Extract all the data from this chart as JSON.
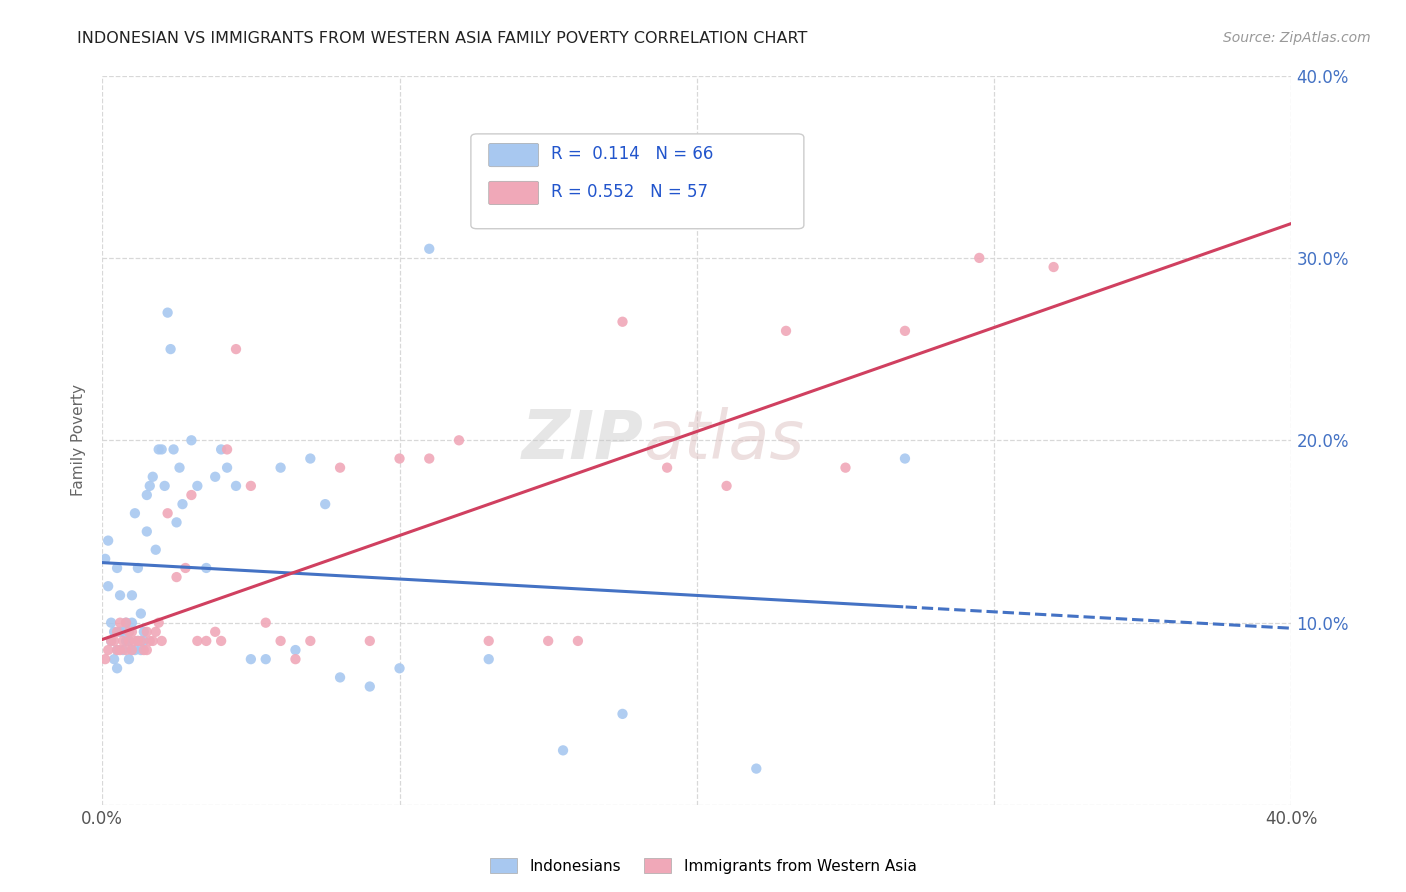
{
  "title": "INDONESIAN VS IMMIGRANTS FROM WESTERN ASIA FAMILY POVERTY CORRELATION CHART",
  "source": "Source: ZipAtlas.com",
  "ylabel": "Family Poverty",
  "xlim": [
    0.0,
    0.4
  ],
  "ylim": [
    0.0,
    0.4
  ],
  "blue_R": "0.114",
  "blue_N": "66",
  "pink_R": "0.552",
  "pink_N": "57",
  "blue_color": "#a8c8f0",
  "pink_color": "#f0a8b8",
  "blue_line_color": "#4472c4",
  "pink_line_color": "#d04060",
  "watermark_ZIP": "ZIP",
  "watermark_atlas": "atlas",
  "legend_label_blue": "Indonesians",
  "legend_label_pink": "Immigrants from Western Asia",
  "blue_x": [
    0.001,
    0.002,
    0.002,
    0.003,
    0.003,
    0.004,
    0.004,
    0.005,
    0.005,
    0.005,
    0.006,
    0.006,
    0.007,
    0.007,
    0.008,
    0.008,
    0.009,
    0.009,
    0.009,
    0.01,
    0.01,
    0.01,
    0.011,
    0.011,
    0.012,
    0.012,
    0.013,
    0.013,
    0.014,
    0.014,
    0.015,
    0.015,
    0.016,
    0.017,
    0.018,
    0.019,
    0.02,
    0.021,
    0.022,
    0.023,
    0.024,
    0.025,
    0.026,
    0.027,
    0.03,
    0.032,
    0.035,
    0.038,
    0.04,
    0.042,
    0.045,
    0.05,
    0.055,
    0.06,
    0.065,
    0.07,
    0.075,
    0.08,
    0.09,
    0.1,
    0.11,
    0.13,
    0.155,
    0.175,
    0.22,
    0.27
  ],
  "blue_y": [
    0.135,
    0.12,
    0.145,
    0.09,
    0.1,
    0.08,
    0.095,
    0.075,
    0.085,
    0.13,
    0.095,
    0.115,
    0.085,
    0.095,
    0.09,
    0.1,
    0.08,
    0.09,
    0.095,
    0.085,
    0.1,
    0.115,
    0.085,
    0.16,
    0.09,
    0.13,
    0.085,
    0.105,
    0.09,
    0.095,
    0.15,
    0.17,
    0.175,
    0.18,
    0.14,
    0.195,
    0.195,
    0.175,
    0.27,
    0.25,
    0.195,
    0.155,
    0.185,
    0.165,
    0.2,
    0.175,
    0.13,
    0.18,
    0.195,
    0.185,
    0.175,
    0.08,
    0.08,
    0.185,
    0.085,
    0.19,
    0.165,
    0.07,
    0.065,
    0.075,
    0.305,
    0.08,
    0.03,
    0.05,
    0.02,
    0.19
  ],
  "pink_x": [
    0.001,
    0.002,
    0.003,
    0.004,
    0.005,
    0.005,
    0.006,
    0.006,
    0.007,
    0.008,
    0.008,
    0.009,
    0.009,
    0.01,
    0.01,
    0.011,
    0.012,
    0.013,
    0.014,
    0.015,
    0.015,
    0.016,
    0.017,
    0.018,
    0.019,
    0.02,
    0.022,
    0.025,
    0.028,
    0.03,
    0.032,
    0.035,
    0.038,
    0.04,
    0.042,
    0.045,
    0.05,
    0.055,
    0.06,
    0.065,
    0.07,
    0.08,
    0.09,
    0.1,
    0.11,
    0.12,
    0.13,
    0.15,
    0.16,
    0.175,
    0.19,
    0.21,
    0.23,
    0.25,
    0.27,
    0.295,
    0.32
  ],
  "pink_y": [
    0.08,
    0.085,
    0.09,
    0.09,
    0.085,
    0.095,
    0.085,
    0.1,
    0.09,
    0.085,
    0.1,
    0.09,
    0.095,
    0.085,
    0.095,
    0.09,
    0.09,
    0.09,
    0.085,
    0.085,
    0.095,
    0.09,
    0.09,
    0.095,
    0.1,
    0.09,
    0.16,
    0.125,
    0.13,
    0.17,
    0.09,
    0.09,
    0.095,
    0.09,
    0.195,
    0.25,
    0.175,
    0.1,
    0.09,
    0.08,
    0.09,
    0.185,
    0.09,
    0.19,
    0.19,
    0.2,
    0.09,
    0.09,
    0.09,
    0.265,
    0.185,
    0.175,
    0.26,
    0.185,
    0.26,
    0.3,
    0.295
  ]
}
